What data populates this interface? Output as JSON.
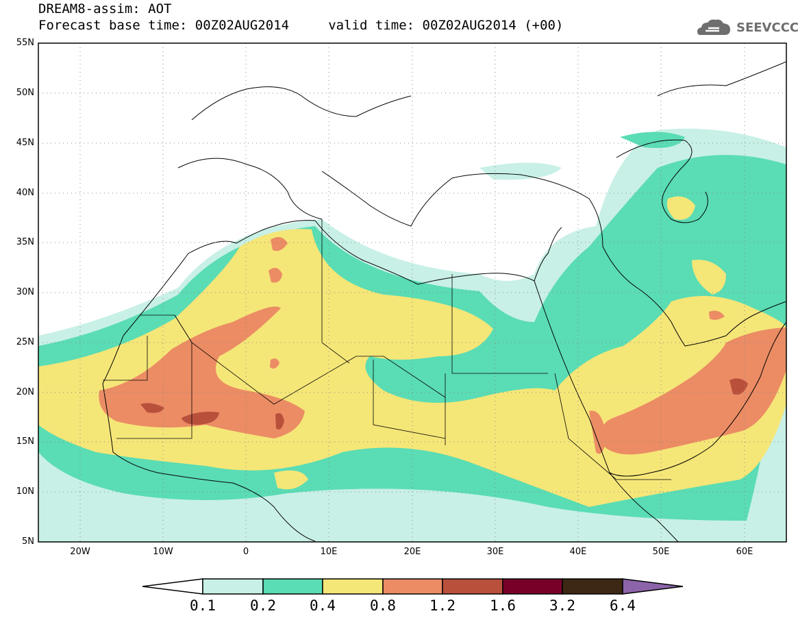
{
  "header": {
    "title_line1": "DREAM8-assim: AOT",
    "title_line2": "Forecast base time: 00Z02AUG2014     valid time: 00Z02AUG2014 (+00)"
  },
  "logo": {
    "text": "SEEVCCC",
    "icon": "cloud-icon"
  },
  "map": {
    "lat_labels": [
      "55N",
      "50N",
      "45N",
      "40N",
      "35N",
      "30N",
      "25N",
      "20N",
      "15N",
      "10N",
      "5N"
    ],
    "lon_labels": [
      "20W",
      "10W",
      "0",
      "10E",
      "20E",
      "30E",
      "40E",
      "50E",
      "60E"
    ],
    "lat_range": [
      5,
      55
    ],
    "lon_range": [
      -25,
      65
    ],
    "grid": "dotted"
  },
  "colorbar": {
    "labels": [
      "0.1",
      "0.2",
      "0.4",
      "0.8",
      "1.2",
      "1.6",
      "3.2",
      "6.4"
    ],
    "colors": [
      "#ffffff",
      "#c8f0e6",
      "#5adcb4",
      "#f5e678",
      "#eb8c64",
      "#b9503c",
      "#780028",
      "#3c2814",
      "#8c64aa"
    ]
  }
}
